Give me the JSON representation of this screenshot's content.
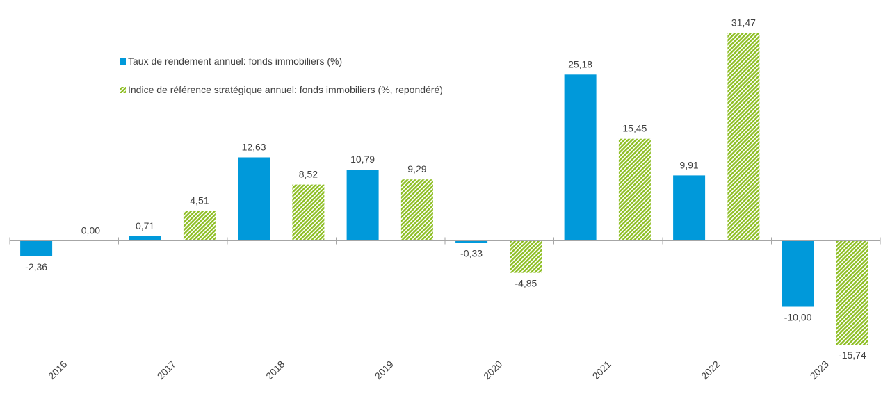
{
  "chart_data": {
    "type": "bar",
    "title": "",
    "xlabel": "",
    "ylabel": "",
    "ylim": [
      -20,
      35
    ],
    "grid": false,
    "legend_placement": "top-left",
    "categories": [
      "2016",
      "2017",
      "2018",
      "2019",
      "2020",
      "2021",
      "2022",
      "2023"
    ],
    "series": [
      {
        "name": "Taux de rendement annuel: fonds immobiliers (%)",
        "values": [
          -2.36,
          0.71,
          12.63,
          10.79,
          -0.33,
          25.18,
          9.91,
          -10.0
        ],
        "labels": [
          "-2,36",
          "0,71",
          "12,63",
          "10,79",
          "-0,33",
          "25,18",
          "9,91",
          "-10,00"
        ],
        "color": "#0099DA",
        "pattern": "solid"
      },
      {
        "name": "Indice de référence stratégique annuel: fonds immobiliers (%, repondéré)",
        "values": [
          0.0,
          4.51,
          8.52,
          9.29,
          -4.85,
          15.45,
          31.47,
          -15.74
        ],
        "labels": [
          "0,00",
          "4,51",
          "8,52",
          "9,29",
          "-4,85",
          "15,45",
          "31,47",
          "-15,74"
        ],
        "color": "#8DBE22",
        "pattern": "diagonal-hatch"
      }
    ]
  }
}
